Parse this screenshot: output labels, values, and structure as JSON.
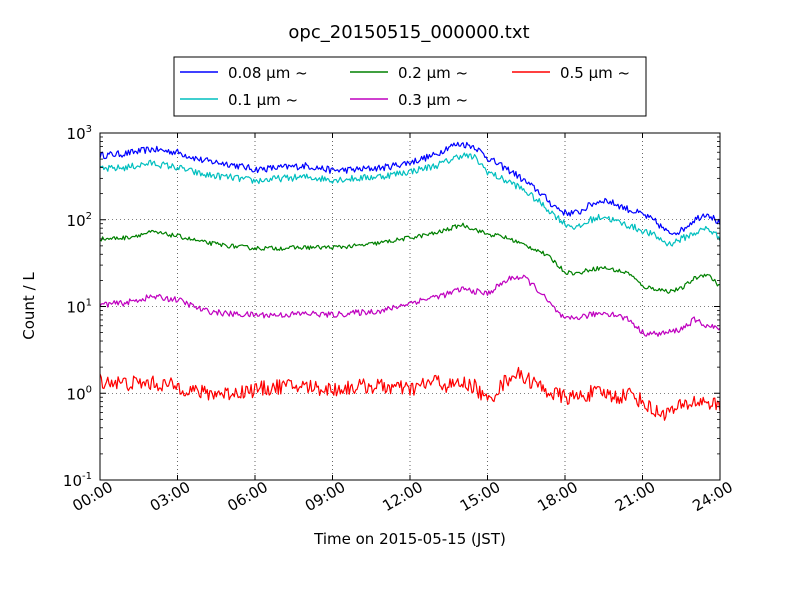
{
  "chart_data": {
    "type": "line",
    "title": "opc_20150515_000000.txt",
    "xlabel": "Time on 2015-05-15 (JST)",
    "ylabel": "Count / L",
    "x_unit": "hours",
    "xlim": [
      0,
      24
    ],
    "ylim": [
      0.1,
      1000
    ],
    "y_scale": "log",
    "grid": true,
    "legend_placement": "top-center, above plot",
    "x_ticks": [
      {
        "value": 0,
        "label": "00:00"
      },
      {
        "value": 3,
        "label": "03:00"
      },
      {
        "value": 6,
        "label": "06:00"
      },
      {
        "value": 9,
        "label": "09:00"
      },
      {
        "value": 12,
        "label": "12:00"
      },
      {
        "value": 15,
        "label": "15:00"
      },
      {
        "value": 18,
        "label": "18:00"
      },
      {
        "value": 21,
        "label": "21:00"
      },
      {
        "value": 24,
        "label": "24:00"
      }
    ],
    "y_ticks": [
      {
        "value": 0.1,
        "base": "10",
        "exp": "-1"
      },
      {
        "value": 1,
        "base": "10",
        "exp": "0"
      },
      {
        "value": 10,
        "base": "10",
        "exp": "1"
      },
      {
        "value": 100,
        "base": "10",
        "exp": "2"
      },
      {
        "value": 1000,
        "base": "10",
        "exp": "3"
      }
    ],
    "series": [
      {
        "name": "0.08 μm ~",
        "color": "#0000ff",
        "noise": 0.04,
        "x": [
          0,
          1,
          2,
          3,
          4,
          5,
          6,
          7,
          8,
          9,
          10,
          11,
          12,
          13,
          13.5,
          14,
          14.5,
          15,
          15.5,
          16,
          16.5,
          17,
          17.5,
          18,
          18.5,
          19,
          19.5,
          20,
          20.5,
          21,
          21.5,
          22,
          22.5,
          23,
          23.5,
          24
        ],
        "y": [
          550,
          580,
          650,
          600,
          480,
          440,
          380,
          400,
          420,
          370,
          380,
          400,
          460,
          560,
          700,
          750,
          700,
          520,
          420,
          350,
          270,
          210,
          150,
          120,
          120,
          150,
          170,
          150,
          130,
          115,
          95,
          70,
          75,
          100,
          120,
          90
        ]
      },
      {
        "name": "0.1 μm ~",
        "color": "#00bfbf",
        "noise": 0.04,
        "x": [
          0,
          1,
          2,
          3,
          4,
          5,
          6,
          7,
          8,
          9,
          10,
          11,
          12,
          13,
          13.5,
          14,
          14.5,
          15,
          15.5,
          16,
          16.5,
          17,
          17.5,
          18,
          18.5,
          19,
          19.5,
          20,
          20.5,
          21,
          21.5,
          22,
          22.5,
          23,
          23.5,
          24
        ],
        "y": [
          380,
          400,
          450,
          400,
          330,
          310,
          280,
          300,
          310,
          290,
          300,
          320,
          360,
          420,
          480,
          560,
          520,
          360,
          300,
          260,
          210,
          160,
          120,
          90,
          80,
          100,
          110,
          95,
          85,
          75,
          65,
          52,
          60,
          70,
          80,
          62
        ]
      },
      {
        "name": "0.2 μm ~",
        "color": "#008000",
        "noise": 0.025,
        "x": [
          0,
          1,
          2,
          3,
          4,
          5,
          6,
          7,
          8,
          9,
          10,
          11,
          12,
          13,
          13.5,
          14,
          14.5,
          15,
          15.5,
          16,
          16.5,
          17,
          17.5,
          18,
          18.5,
          19,
          19.5,
          20,
          20.5,
          21,
          21.5,
          22,
          22.5,
          23,
          23.5,
          24
        ],
        "y": [
          60,
          62,
          72,
          65,
          55,
          50,
          47,
          47,
          48,
          48,
          50,
          55,
          62,
          70,
          78,
          88,
          78,
          68,
          65,
          58,
          50,
          44,
          35,
          25,
          24,
          27,
          28,
          26,
          24,
          17,
          16,
          15,
          16,
          21,
          24,
          17
        ]
      },
      {
        "name": "0.3 μm ~",
        "color": "#bf00bf",
        "noise": 0.035,
        "x": [
          0,
          1,
          2,
          3,
          4,
          5,
          6,
          7,
          8,
          9,
          10,
          11,
          12,
          13,
          13.5,
          14,
          14.5,
          15,
          15.5,
          16,
          16.5,
          17,
          17.5,
          18,
          18.5,
          19,
          19.5,
          20,
          20.5,
          21,
          21.5,
          22,
          22.5,
          23,
          23.5,
          24
        ],
        "y": [
          10.5,
          11,
          13,
          12,
          9,
          8.2,
          8,
          8,
          8.3,
          8,
          8.5,
          9,
          11,
          13,
          14,
          16,
          15,
          14,
          18,
          22,
          21,
          15,
          10,
          7,
          7.5,
          8,
          8.5,
          8,
          7,
          5,
          4.8,
          5,
          5.5,
          7,
          6,
          5.5
        ]
      },
      {
        "name": "0.5 μm ~",
        "color": "#ff0000",
        "noise": 0.09,
        "x": [
          0,
          1,
          2,
          3,
          4,
          5,
          6,
          7,
          8,
          9,
          10,
          11,
          12,
          13,
          13.5,
          14,
          14.5,
          15,
          15.5,
          16,
          16.5,
          17,
          17.5,
          18,
          18.5,
          19,
          19.5,
          20,
          20.5,
          21,
          21.5,
          22,
          22.5,
          23,
          23.5,
          24
        ],
        "y": [
          1.4,
          1.3,
          1.3,
          1.2,
          1.0,
          1.0,
          1.1,
          1.2,
          1.2,
          1.1,
          1.2,
          1.2,
          1.1,
          1.4,
          1.2,
          1.3,
          1.2,
          0.8,
          1.2,
          1.7,
          1.5,
          1.2,
          1.0,
          0.9,
          0.9,
          1.0,
          1.0,
          0.9,
          1.0,
          0.8,
          0.6,
          0.6,
          0.7,
          0.8,
          0.8,
          0.7
        ]
      }
    ]
  }
}
